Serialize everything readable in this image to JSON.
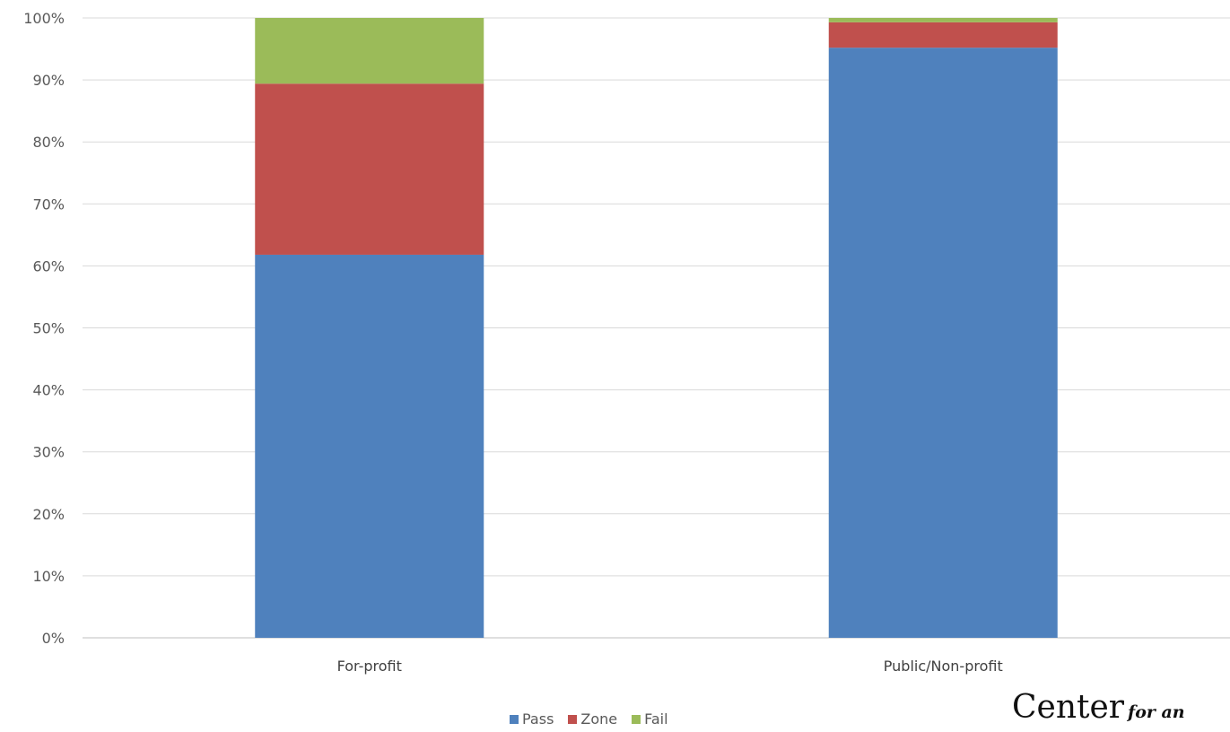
{
  "chart_data": {
    "type": "bar",
    "stacked": true,
    "categories": [
      "For-profit",
      "Public/Non-profit"
    ],
    "series": [
      {
        "name": "Pass",
        "values": [
          61.8,
          95.2
        ],
        "color": "#4F81BD"
      },
      {
        "name": "Zone",
        "values": [
          27.6,
          4.1
        ],
        "color": "#C0504D"
      },
      {
        "name": "Fail",
        "values": [
          10.6,
          0.7
        ],
        "color": "#9BBB59"
      }
    ],
    "ylim": [
      0,
      100
    ],
    "yticks": [
      "0%",
      "10%",
      "20%",
      "30%",
      "40%",
      "50%",
      "60%",
      "70%",
      "80%",
      "90%",
      "100%"
    ],
    "grid": true,
    "legend": "bottom"
  },
  "logo": {
    "main": "Center",
    "sub": "for an"
  }
}
